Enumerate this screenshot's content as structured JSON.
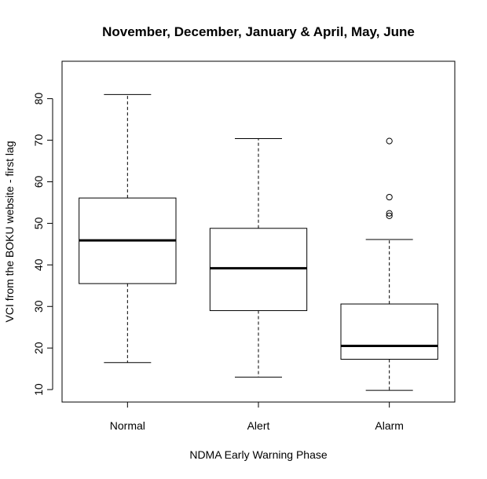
{
  "chart_data": {
    "type": "boxplot",
    "title": "November, December, January & April, May, June",
    "xlabel": "NDMA Early Warning Phase",
    "ylabel": "VCI from the BOKU website - first lag",
    "yticks": [
      10,
      20,
      30,
      40,
      50,
      60,
      70,
      80
    ],
    "ylim": [
      7,
      89
    ],
    "categories": [
      "Normal",
      "Alert",
      "Alarm"
    ],
    "boxes": [
      {
        "category": "Normal",
        "whisker_low": 16.5,
        "q1": 35.5,
        "median": 45.9,
        "q3": 56.1,
        "whisker_high": 81,
        "outliers": []
      },
      {
        "category": "Alert",
        "whisker_low": 13,
        "q1": 29,
        "median": 39.2,
        "q3": 48.8,
        "whisker_high": 70.4,
        "outliers": []
      },
      {
        "category": "Alarm",
        "whisker_low": 9.8,
        "q1": 17.3,
        "median": 20.5,
        "q3": 30.6,
        "whisker_high": 46.1,
        "outliers": [
          51.8,
          52.4,
          56.3,
          69.8
        ]
      }
    ],
    "colors": {
      "stroke": "#000000",
      "box_fill": "#ffffff",
      "background": "#ffffff"
    }
  }
}
